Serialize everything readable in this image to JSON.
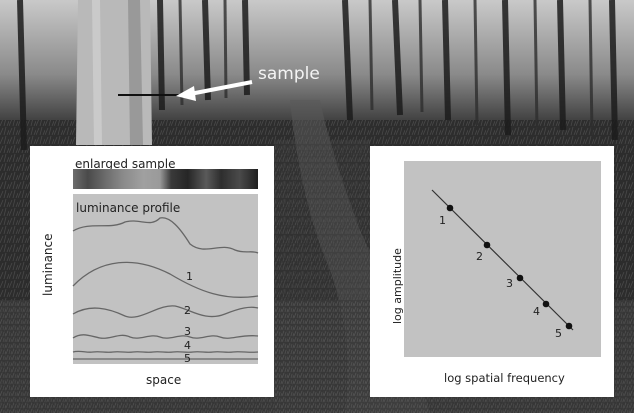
{
  "sample_label": "sample",
  "left_panel": {
    "enlarged_sample_label": "enlarged sample",
    "profile_title": "luminance profile",
    "y_axis_label": "luminance",
    "x_axis_label": "space",
    "component_labels": [
      "1",
      "2",
      "3",
      "4",
      "5"
    ]
  },
  "right_panel": {
    "y_axis_label": "log amplitude",
    "x_axis_label": "log spatial frequency",
    "point_labels": [
      "1",
      "2",
      "3",
      "4",
      "5"
    ]
  }
}
